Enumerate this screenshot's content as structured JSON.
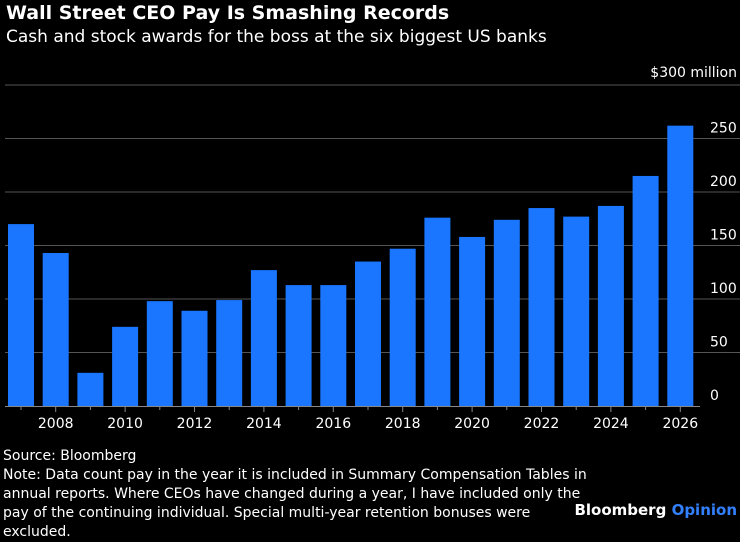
{
  "title": "Wall Street CEO Pay Is Smashing Records",
  "subtitle": "Cash and stock awards for the boss at the six biggest US banks",
  "source": "Source: Bloomberg",
  "note": "Note: Data count pay in the year it is included in Summary Compensation Tables in annual reports. Where CEOs have changed during a year, I have included only the pay of the continuing individual. Special multi-year retention bonuses were excluded.",
  "brand": {
    "name": "Bloomberg",
    "section": "Opinion"
  },
  "colors": {
    "bar": "#1a75ff",
    "grid": "#555555",
    "axis": "#888888",
    "text": "#ffffff",
    "accent": "#3380ff"
  },
  "chart_data": {
    "type": "bar",
    "title": "Wall Street CEO Pay Is Smashing Records",
    "ylabel": "$300 million",
    "ylim": [
      0,
      300
    ],
    "yticks": [
      0,
      50,
      100,
      150,
      200,
      250
    ],
    "top_tick_label": "$300 million",
    "categories": [
      2007,
      2008,
      2009,
      2010,
      2011,
      2012,
      2013,
      2014,
      2015,
      2016,
      2017,
      2018,
      2019,
      2020,
      2021,
      2022,
      2023,
      2024,
      2025,
      2026
    ],
    "xtick_labels": [
      "2008",
      "2010",
      "2012",
      "2014",
      "2016",
      "2018",
      "2020",
      "2022",
      "2024",
      "2026"
    ],
    "values": [
      170,
      143,
      31,
      74,
      98,
      89,
      99,
      127,
      113,
      113,
      135,
      147,
      176,
      158,
      174,
      185,
      177,
      187,
      215,
      262
    ]
  }
}
